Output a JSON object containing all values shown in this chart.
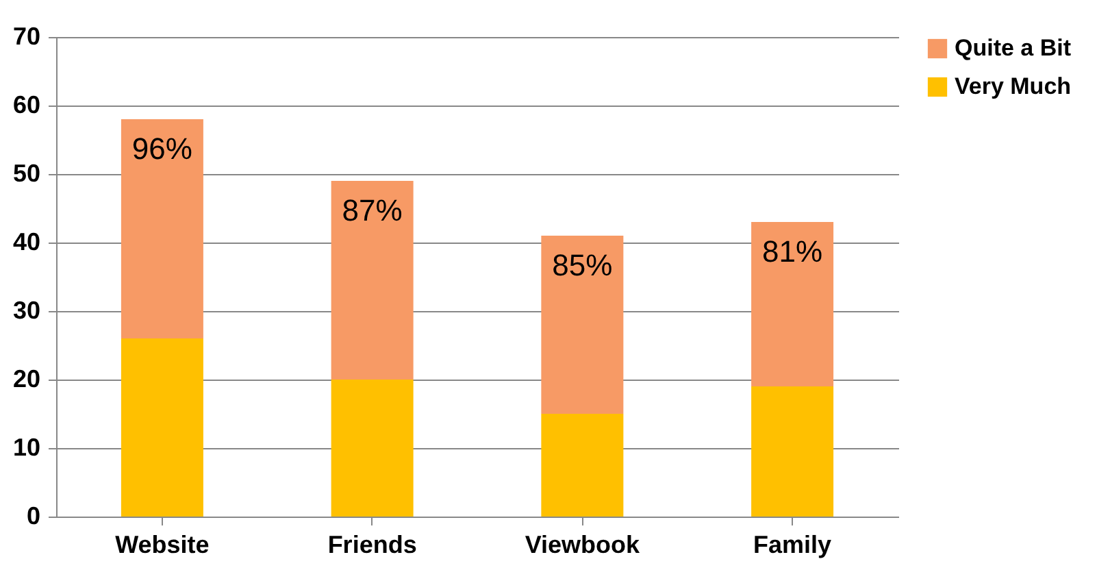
{
  "chart_data": {
    "type": "bar",
    "stacked": true,
    "categories": [
      "Website",
      "Friends",
      "Viewbook",
      "Family"
    ],
    "series": [
      {
        "name": "Very Much",
        "color": "#ffc000",
        "values": [
          26,
          20,
          15,
          19
        ]
      },
      {
        "name": "Quite a Bit",
        "color": "#f79a65",
        "values": [
          32,
          29,
          26,
          24
        ]
      }
    ],
    "ylim": [
      0,
      70
    ],
    "yticks": [
      0,
      10,
      20,
      30,
      40,
      50,
      60,
      70
    ],
    "grid": "y",
    "legend": "right",
    "annotations": [
      "96%",
      "87%",
      "85%",
      "81%"
    ]
  }
}
